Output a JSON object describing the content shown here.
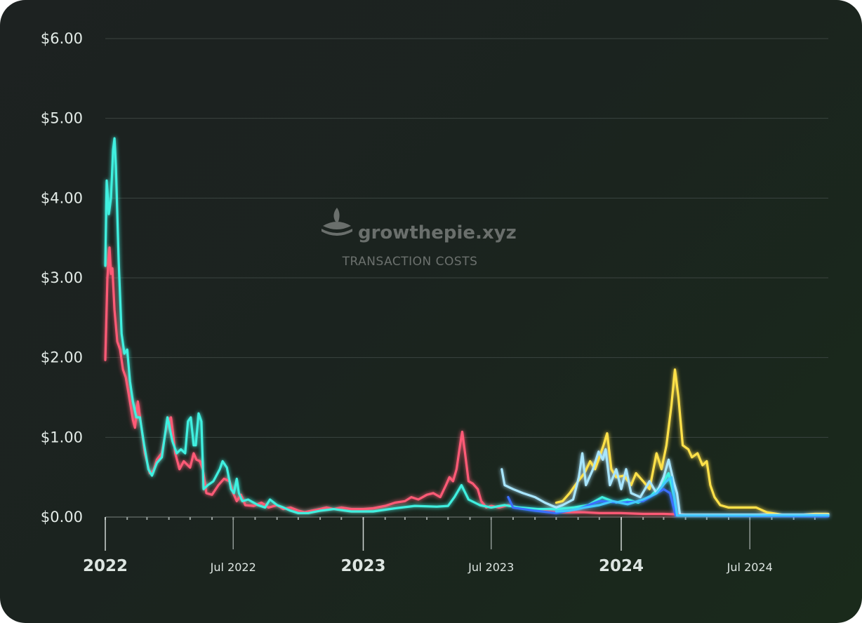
{
  "watermark": {
    "brand": "growthepie.xyz",
    "subtitle": "TRANSACTION COSTS"
  },
  "colors": {
    "red": "#ff5a76",
    "cyan": "#3ff0e0",
    "yellow": "#ffe14a",
    "lightblue": "#a8e6ff",
    "blue": "#3b6fff",
    "skyblue": "#43c8ff"
  },
  "chart_data": {
    "type": "line",
    "title": "TRANSACTION COSTS",
    "xlabel": "",
    "ylabel": "",
    "ylim": [
      0,
      6
    ],
    "xlim": [
      "2022-01-01",
      "2024-10-20"
    ],
    "y_ticks": [
      "$0.00",
      "$1.00",
      "$2.00",
      "$3.00",
      "$4.00",
      "$5.00",
      "$6.00"
    ],
    "x_ticks": [
      {
        "label": "2022",
        "date": "2022-01-01",
        "major": true
      },
      {
        "label": "Jul 2022",
        "date": "2022-07-01",
        "major": false
      },
      {
        "label": "2023",
        "date": "2023-01-01",
        "major": true
      },
      {
        "label": "Jul 2023",
        "date": "2023-07-01",
        "major": false
      },
      {
        "label": "2024",
        "date": "2024-01-01",
        "major": true
      },
      {
        "label": "Jul 2024",
        "date": "2024-07-01",
        "major": false
      }
    ],
    "grid": true,
    "legend": "none",
    "series": [
      {
        "color": "#ff5a76",
        "points": [
          [
            "2022-01-01",
            1.97
          ],
          [
            "2022-01-04",
            3.0
          ],
          [
            "2022-01-07",
            3.38
          ],
          [
            "2022-01-09",
            3.05
          ],
          [
            "2022-01-11",
            3.12
          ],
          [
            "2022-01-14",
            2.6
          ],
          [
            "2022-01-18",
            2.2
          ],
          [
            "2022-01-22",
            2.1
          ],
          [
            "2022-01-26",
            1.85
          ],
          [
            "2022-01-30",
            1.75
          ],
          [
            "2022-02-04",
            1.5
          ],
          [
            "2022-02-09",
            1.22
          ],
          [
            "2022-02-12",
            1.12
          ],
          [
            "2022-02-16",
            1.45
          ],
          [
            "2022-02-20",
            1.2
          ],
          [
            "2022-02-26",
            0.8
          ],
          [
            "2022-03-05",
            0.55
          ],
          [
            "2022-03-10",
            0.58
          ],
          [
            "2022-03-15",
            0.72
          ],
          [
            "2022-03-22",
            0.8
          ],
          [
            "2022-03-30",
            1.2
          ],
          [
            "2022-04-04",
            1.25
          ],
          [
            "2022-04-10",
            0.8
          ],
          [
            "2022-04-16",
            0.6
          ],
          [
            "2022-04-22",
            0.7
          ],
          [
            "2022-05-01",
            0.62
          ],
          [
            "2022-05-06",
            0.8
          ],
          [
            "2022-05-10",
            0.72
          ],
          [
            "2022-05-15",
            0.7
          ],
          [
            "2022-05-19",
            0.6
          ],
          [
            "2022-05-24",
            0.3
          ],
          [
            "2022-06-01",
            0.28
          ],
          [
            "2022-06-10",
            0.4
          ],
          [
            "2022-06-18",
            0.48
          ],
          [
            "2022-06-26",
            0.45
          ],
          [
            "2022-07-01",
            0.3
          ],
          [
            "2022-07-06",
            0.2
          ],
          [
            "2022-07-12",
            0.28
          ],
          [
            "2022-07-18",
            0.15
          ],
          [
            "2022-07-30",
            0.14
          ],
          [
            "2022-08-10",
            0.18
          ],
          [
            "2022-08-20",
            0.12
          ],
          [
            "2022-09-01",
            0.15
          ],
          [
            "2022-09-10",
            0.1
          ],
          [
            "2022-09-20",
            0.12
          ],
          [
            "2022-10-01",
            0.08
          ],
          [
            "2022-10-10",
            0.06
          ],
          [
            "2022-10-20",
            0.08
          ],
          [
            "2022-11-01",
            0.1
          ],
          [
            "2022-11-10",
            0.12
          ],
          [
            "2022-11-20",
            0.1
          ],
          [
            "2022-12-01",
            0.12
          ],
          [
            "2022-12-15",
            0.1
          ],
          [
            "2023-01-01",
            0.1
          ],
          [
            "2023-01-15",
            0.11
          ],
          [
            "2023-02-01",
            0.14
          ],
          [
            "2023-02-15",
            0.18
          ],
          [
            "2023-03-01",
            0.2
          ],
          [
            "2023-03-10",
            0.25
          ],
          [
            "2023-03-20",
            0.22
          ],
          [
            "2023-04-01",
            0.28
          ],
          [
            "2023-04-10",
            0.3
          ],
          [
            "2023-04-20",
            0.25
          ],
          [
            "2023-04-28",
            0.4
          ],
          [
            "2023-05-03",
            0.5
          ],
          [
            "2023-05-08",
            0.45
          ],
          [
            "2023-05-13",
            0.6
          ],
          [
            "2023-05-18",
            0.9
          ],
          [
            "2023-05-21",
            1.07
          ],
          [
            "2023-05-25",
            0.8
          ],
          [
            "2023-05-30",
            0.45
          ],
          [
            "2023-06-05",
            0.42
          ],
          [
            "2023-06-12",
            0.35
          ],
          [
            "2023-06-17",
            0.2
          ],
          [
            "2023-06-24",
            0.12
          ],
          [
            "2023-07-01",
            0.14
          ],
          [
            "2023-07-12",
            0.12
          ],
          [
            "2023-07-25",
            0.15
          ],
          [
            "2023-08-08",
            0.12
          ],
          [
            "2023-08-25",
            0.1
          ],
          [
            "2023-09-10",
            0.08
          ],
          [
            "2023-09-30",
            0.06
          ],
          [
            "2023-10-20",
            0.06
          ],
          [
            "2023-11-10",
            0.06
          ],
          [
            "2023-12-01",
            0.05
          ],
          [
            "2023-12-31",
            0.05
          ],
          [
            "2024-02-01",
            0.04
          ],
          [
            "2024-03-01",
            0.04
          ],
          [
            "2024-04-01",
            0.03
          ],
          [
            "2024-06-01",
            0.02
          ],
          [
            "2024-08-01",
            0.02
          ],
          [
            "2024-10-20",
            0.02
          ]
        ]
      },
      {
        "color": "#3ff0e0",
        "points": [
          [
            "2022-01-01",
            3.15
          ],
          [
            "2022-01-03",
            4.22
          ],
          [
            "2022-01-06",
            3.8
          ],
          [
            "2022-01-09",
            4.0
          ],
          [
            "2022-01-12",
            4.6
          ],
          [
            "2022-01-14",
            4.75
          ],
          [
            "2022-01-16",
            4.4
          ],
          [
            "2022-01-20",
            3.2
          ],
          [
            "2022-01-24",
            2.3
          ],
          [
            "2022-01-28",
            2.05
          ],
          [
            "2022-02-01",
            2.1
          ],
          [
            "2022-02-05",
            1.7
          ],
          [
            "2022-02-09",
            1.45
          ],
          [
            "2022-02-14",
            1.25
          ],
          [
            "2022-02-19",
            1.25
          ],
          [
            "2022-02-25",
            0.9
          ],
          [
            "2022-03-03",
            0.6
          ],
          [
            "2022-03-08",
            0.52
          ],
          [
            "2022-03-15",
            0.68
          ],
          [
            "2022-03-22",
            0.75
          ],
          [
            "2022-03-30",
            1.25
          ],
          [
            "2022-04-06",
            0.95
          ],
          [
            "2022-04-12",
            0.8
          ],
          [
            "2022-04-18",
            0.85
          ],
          [
            "2022-04-24",
            0.8
          ],
          [
            "2022-04-28",
            1.2
          ],
          [
            "2022-05-02",
            1.25
          ],
          [
            "2022-05-06",
            0.9
          ],
          [
            "2022-05-09",
            0.9
          ],
          [
            "2022-05-13",
            1.3
          ],
          [
            "2022-05-17",
            1.2
          ],
          [
            "2022-05-20",
            0.35
          ],
          [
            "2022-05-26",
            0.4
          ],
          [
            "2022-06-03",
            0.45
          ],
          [
            "2022-06-12",
            0.6
          ],
          [
            "2022-06-16",
            0.7
          ],
          [
            "2022-06-22",
            0.62
          ],
          [
            "2022-06-28",
            0.35
          ],
          [
            "2022-07-02",
            0.3
          ],
          [
            "2022-07-06",
            0.48
          ],
          [
            "2022-07-09",
            0.3
          ],
          [
            "2022-07-14",
            0.2
          ],
          [
            "2022-07-22",
            0.22
          ],
          [
            "2022-08-05",
            0.15
          ],
          [
            "2022-08-15",
            0.12
          ],
          [
            "2022-08-22",
            0.22
          ],
          [
            "2022-09-01",
            0.15
          ],
          [
            "2022-09-10",
            0.12
          ],
          [
            "2022-09-20",
            0.08
          ],
          [
            "2022-10-01",
            0.05
          ],
          [
            "2022-10-15",
            0.05
          ],
          [
            "2022-11-01",
            0.08
          ],
          [
            "2022-11-20",
            0.1
          ],
          [
            "2022-12-15",
            0.07
          ],
          [
            "2023-01-15",
            0.07
          ],
          [
            "2023-02-15",
            0.11
          ],
          [
            "2023-03-15",
            0.14
          ],
          [
            "2023-04-15",
            0.13
          ],
          [
            "2023-05-01",
            0.14
          ],
          [
            "2023-05-10",
            0.25
          ],
          [
            "2023-05-20",
            0.4
          ],
          [
            "2023-05-30",
            0.22
          ],
          [
            "2023-06-15",
            0.15
          ],
          [
            "2023-07-01",
            0.12
          ],
          [
            "2023-07-20",
            0.15
          ],
          [
            "2023-08-10",
            0.12
          ],
          [
            "2023-09-05",
            0.1
          ],
          [
            "2023-10-01",
            0.1
          ],
          [
            "2023-10-25",
            0.12
          ],
          [
            "2023-11-15",
            0.15
          ],
          [
            "2023-12-05",
            0.25
          ],
          [
            "2023-12-25",
            0.18
          ],
          [
            "2024-01-10",
            0.22
          ],
          [
            "2024-01-25",
            0.18
          ],
          [
            "2024-02-10",
            0.25
          ],
          [
            "2024-02-25",
            0.38
          ],
          [
            "2024-03-08",
            0.55
          ],
          [
            "2024-03-16",
            0.25
          ],
          [
            "2024-03-20",
            0.02
          ],
          [
            "2024-04-15",
            0.02
          ],
          [
            "2024-07-01",
            0.02
          ],
          [
            "2024-10-20",
            0.03
          ]
        ]
      },
      {
        "color": "#ffe14a",
        "points": [
          [
            "2023-10-01",
            0.18
          ],
          [
            "2023-10-10",
            0.2
          ],
          [
            "2023-10-20",
            0.3
          ],
          [
            "2023-11-01",
            0.45
          ],
          [
            "2023-11-10",
            0.55
          ],
          [
            "2023-11-18",
            0.7
          ],
          [
            "2023-11-25",
            0.6
          ],
          [
            "2023-12-01",
            0.75
          ],
          [
            "2023-12-07",
            0.9
          ],
          [
            "2023-12-12",
            1.05
          ],
          [
            "2023-12-18",
            0.6
          ],
          [
            "2023-12-25",
            0.5
          ],
          [
            "2024-01-05",
            0.52
          ],
          [
            "2024-01-15",
            0.4
          ],
          [
            "2024-01-22",
            0.55
          ],
          [
            "2024-02-01",
            0.45
          ],
          [
            "2024-02-10",
            0.35
          ],
          [
            "2024-02-20",
            0.8
          ],
          [
            "2024-02-27",
            0.6
          ],
          [
            "2024-03-05",
            0.9
          ],
          [
            "2024-03-12",
            1.4
          ],
          [
            "2024-03-17",
            1.85
          ],
          [
            "2024-03-22",
            1.5
          ],
          [
            "2024-03-28",
            0.9
          ],
          [
            "2024-04-05",
            0.85
          ],
          [
            "2024-04-10",
            0.75
          ],
          [
            "2024-04-18",
            0.8
          ],
          [
            "2024-04-25",
            0.65
          ],
          [
            "2024-05-01",
            0.7
          ],
          [
            "2024-05-06",
            0.4
          ],
          [
            "2024-05-12",
            0.25
          ],
          [
            "2024-05-20",
            0.15
          ],
          [
            "2024-06-01",
            0.12
          ],
          [
            "2024-06-20",
            0.12
          ],
          [
            "2024-07-10",
            0.12
          ],
          [
            "2024-07-25",
            0.06
          ],
          [
            "2024-08-15",
            0.03
          ],
          [
            "2024-09-15",
            0.03
          ],
          [
            "2024-10-01",
            0.04
          ],
          [
            "2024-10-20",
            0.04
          ]
        ]
      },
      {
        "color": "#a8e6ff",
        "points": [
          [
            "2023-07-16",
            0.6
          ],
          [
            "2023-07-20",
            0.4
          ],
          [
            "2023-08-01",
            0.35
          ],
          [
            "2023-08-15",
            0.3
          ],
          [
            "2023-09-01",
            0.25
          ],
          [
            "2023-09-15",
            0.18
          ],
          [
            "2023-10-01",
            0.12
          ],
          [
            "2023-10-10",
            0.15
          ],
          [
            "2023-10-25",
            0.22
          ],
          [
            "2023-11-02",
            0.5
          ],
          [
            "2023-11-07",
            0.8
          ],
          [
            "2023-11-12",
            0.4
          ],
          [
            "2023-11-22",
            0.6
          ],
          [
            "2023-11-30",
            0.82
          ],
          [
            "2023-12-06",
            0.72
          ],
          [
            "2023-12-10",
            0.85
          ],
          [
            "2023-12-16",
            0.4
          ],
          [
            "2023-12-25",
            0.6
          ],
          [
            "2024-01-01",
            0.35
          ],
          [
            "2024-01-08",
            0.6
          ],
          [
            "2024-01-15",
            0.3
          ],
          [
            "2024-01-28",
            0.25
          ],
          [
            "2024-02-10",
            0.45
          ],
          [
            "2024-02-20",
            0.3
          ],
          [
            "2024-03-01",
            0.5
          ],
          [
            "2024-03-08",
            0.72
          ],
          [
            "2024-03-15",
            0.45
          ],
          [
            "2024-03-20",
            0.3
          ],
          [
            "2024-03-24",
            0.03
          ],
          [
            "2024-05-01",
            0.03
          ],
          [
            "2024-07-01",
            0.03
          ],
          [
            "2024-10-20",
            0.03
          ]
        ]
      },
      {
        "color": "#3b6fff",
        "points": [
          [
            "2023-07-25",
            0.25
          ],
          [
            "2023-08-01",
            0.12
          ],
          [
            "2023-09-01",
            0.08
          ],
          [
            "2023-10-01",
            0.05
          ],
          [
            "2023-11-01",
            0.1
          ],
          [
            "2023-12-01",
            0.2
          ],
          [
            "2024-01-01",
            0.18
          ],
          [
            "2024-02-01",
            0.2
          ],
          [
            "2024-03-01",
            0.35
          ],
          [
            "2024-03-10",
            0.3
          ],
          [
            "2024-03-18",
            0.02
          ],
          [
            "2024-10-20",
            0.01
          ]
        ]
      },
      {
        "color": "#43c8ff",
        "points": [
          [
            "2023-10-01",
            0.07
          ],
          [
            "2023-10-20",
            0.08
          ],
          [
            "2023-11-10",
            0.12
          ],
          [
            "2023-12-01",
            0.15
          ],
          [
            "2023-12-20",
            0.2
          ],
          [
            "2024-01-10",
            0.16
          ],
          [
            "2024-02-01",
            0.22
          ],
          [
            "2024-02-20",
            0.3
          ],
          [
            "2024-03-05",
            0.45
          ],
          [
            "2024-03-12",
            0.5
          ],
          [
            "2024-03-20",
            0.02
          ],
          [
            "2024-10-20",
            0.02
          ]
        ]
      }
    ]
  }
}
